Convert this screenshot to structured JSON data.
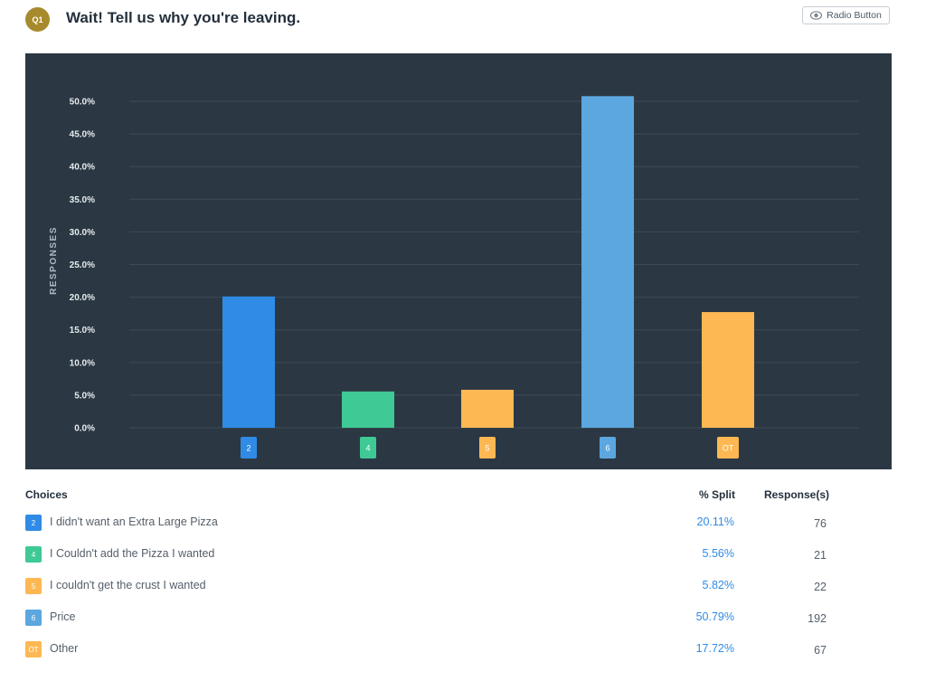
{
  "header": {
    "badge": "Q1",
    "title": "Wait! Tell us why you're leaving.",
    "type_button": {
      "label": "Radio Button",
      "icon": "eye-icon"
    }
  },
  "colors": {
    "badge": "#a78a2c",
    "panel_bg": "#2b3843",
    "grid": "#3e4b57",
    "blue": "#2f8be6",
    "green": "#3fc995",
    "orange": "#fdb853",
    "light_blue": "#5ca7df"
  },
  "chart_data": {
    "type": "bar",
    "ylabel": "RESPONSES",
    "xlabel": "",
    "ylim": [
      0,
      55
    ],
    "yticks": [
      "0.0%",
      "5.0%",
      "10.0%",
      "15.0%",
      "20.0%",
      "25.0%",
      "30.0%",
      "35.0%",
      "40.0%",
      "45.0%",
      "50.0%"
    ],
    "grid": true,
    "categories": [
      "2",
      "4",
      "5",
      "6",
      "OT"
    ],
    "values": [
      20.11,
      5.56,
      5.82,
      50.79,
      17.72
    ],
    "colors": [
      "#2f8be6",
      "#3fc995",
      "#fdb853",
      "#5ca7df",
      "#fdb853"
    ]
  },
  "table": {
    "headers": {
      "choices": "Choices",
      "split": "% Split",
      "responses": "Response(s)"
    },
    "rows": [
      {
        "code": "2",
        "label": "I didn't want an Extra Large Pizza",
        "split": "20.11%",
        "responses": "76",
        "color": "#2f8be6"
      },
      {
        "code": "4",
        "label": "I Couldn't add the Pizza I wanted",
        "split": "5.56%",
        "responses": "21",
        "color": "#3fc995"
      },
      {
        "code": "5",
        "label": "I couldn't get the crust I wanted",
        "split": "5.82%",
        "responses": "22",
        "color": "#fdb853"
      },
      {
        "code": "6",
        "label": "Price",
        "split": "50.79%",
        "responses": "192",
        "color": "#5ca7df"
      },
      {
        "code": "OT",
        "label": "Other",
        "split": "17.72%",
        "responses": "67",
        "color": "#fdb853"
      }
    ]
  }
}
